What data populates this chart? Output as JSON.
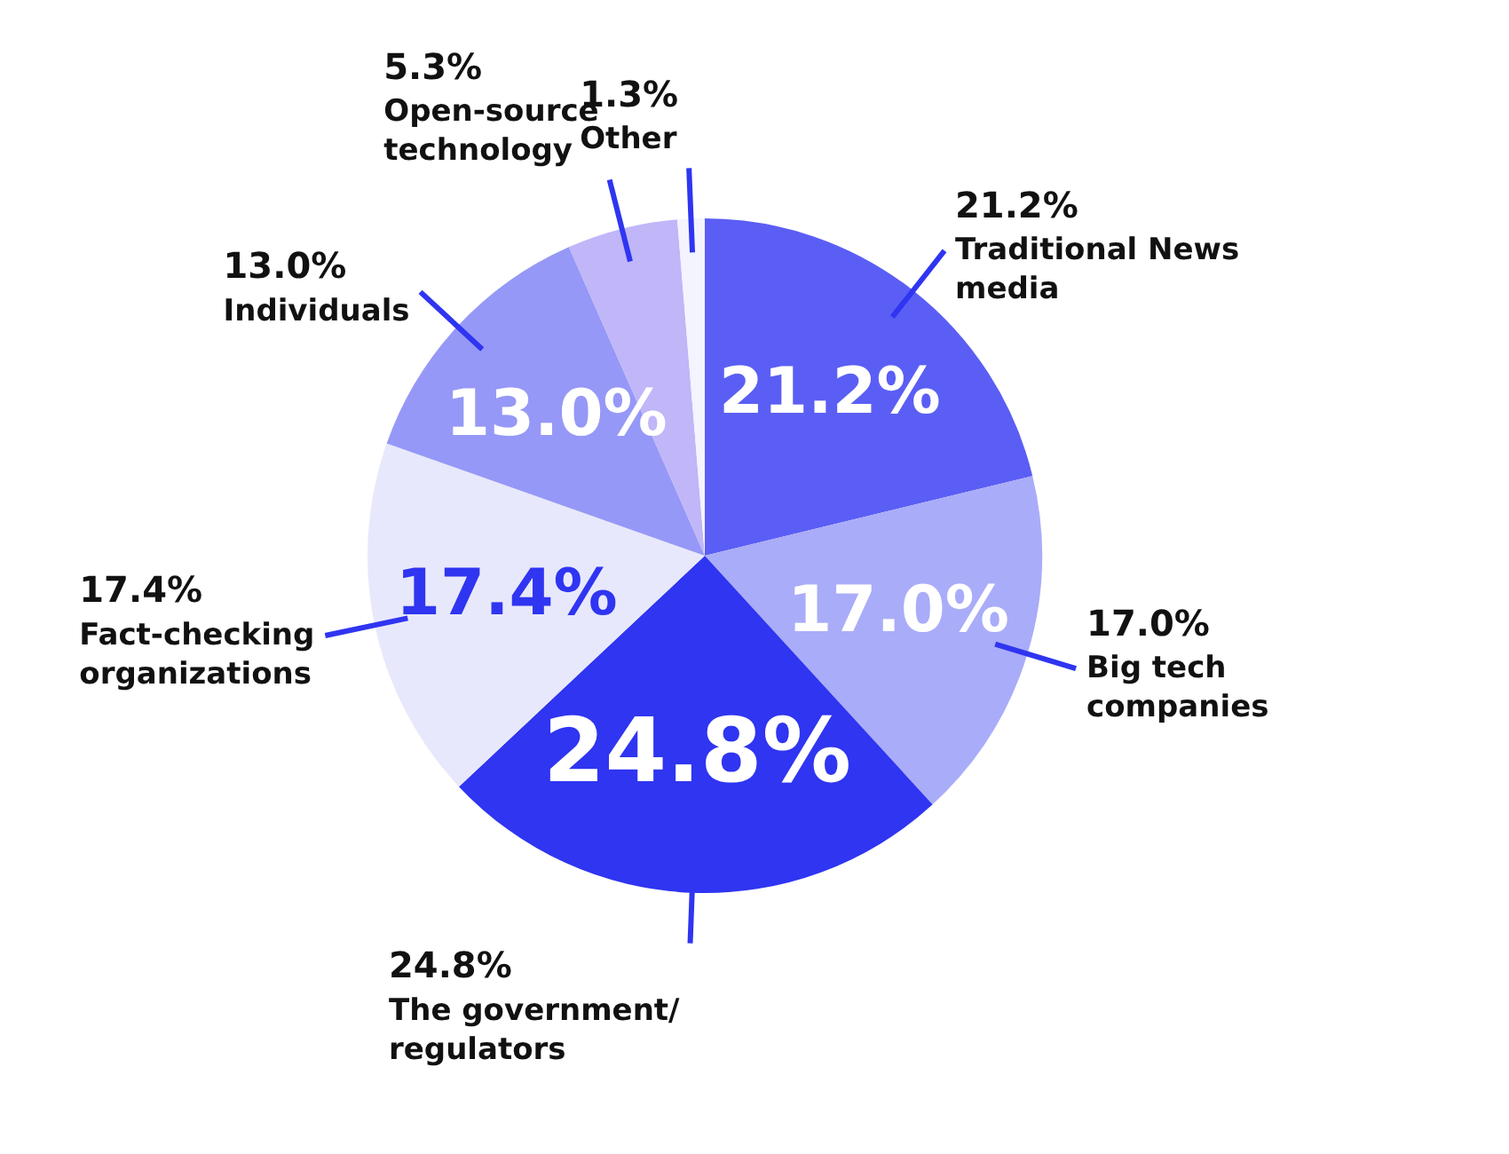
{
  "chart_data": {
    "type": "pie",
    "categories": [
      "Traditional News media",
      "Big tech companies",
      "The government/ regulators",
      "Fact-checking organizations",
      "Individuals",
      "Open-source technology",
      "Other"
    ],
    "values": [
      21.2,
      17.0,
      24.8,
      17.4,
      13.0,
      5.3,
      1.3
    ],
    "colors": [
      "#5b5ef4",
      "#a9acf8",
      "#2f35f0",
      "#e8e8fc",
      "#9598f6",
      "#c0b6f8",
      "#f4f4fe"
    ],
    "value_labels": [
      "21.2%",
      "17.0%",
      "24.8%",
      "17.4%",
      "13.0%",
      "5.3%",
      "1.3%"
    ],
    "legend": false
  }
}
